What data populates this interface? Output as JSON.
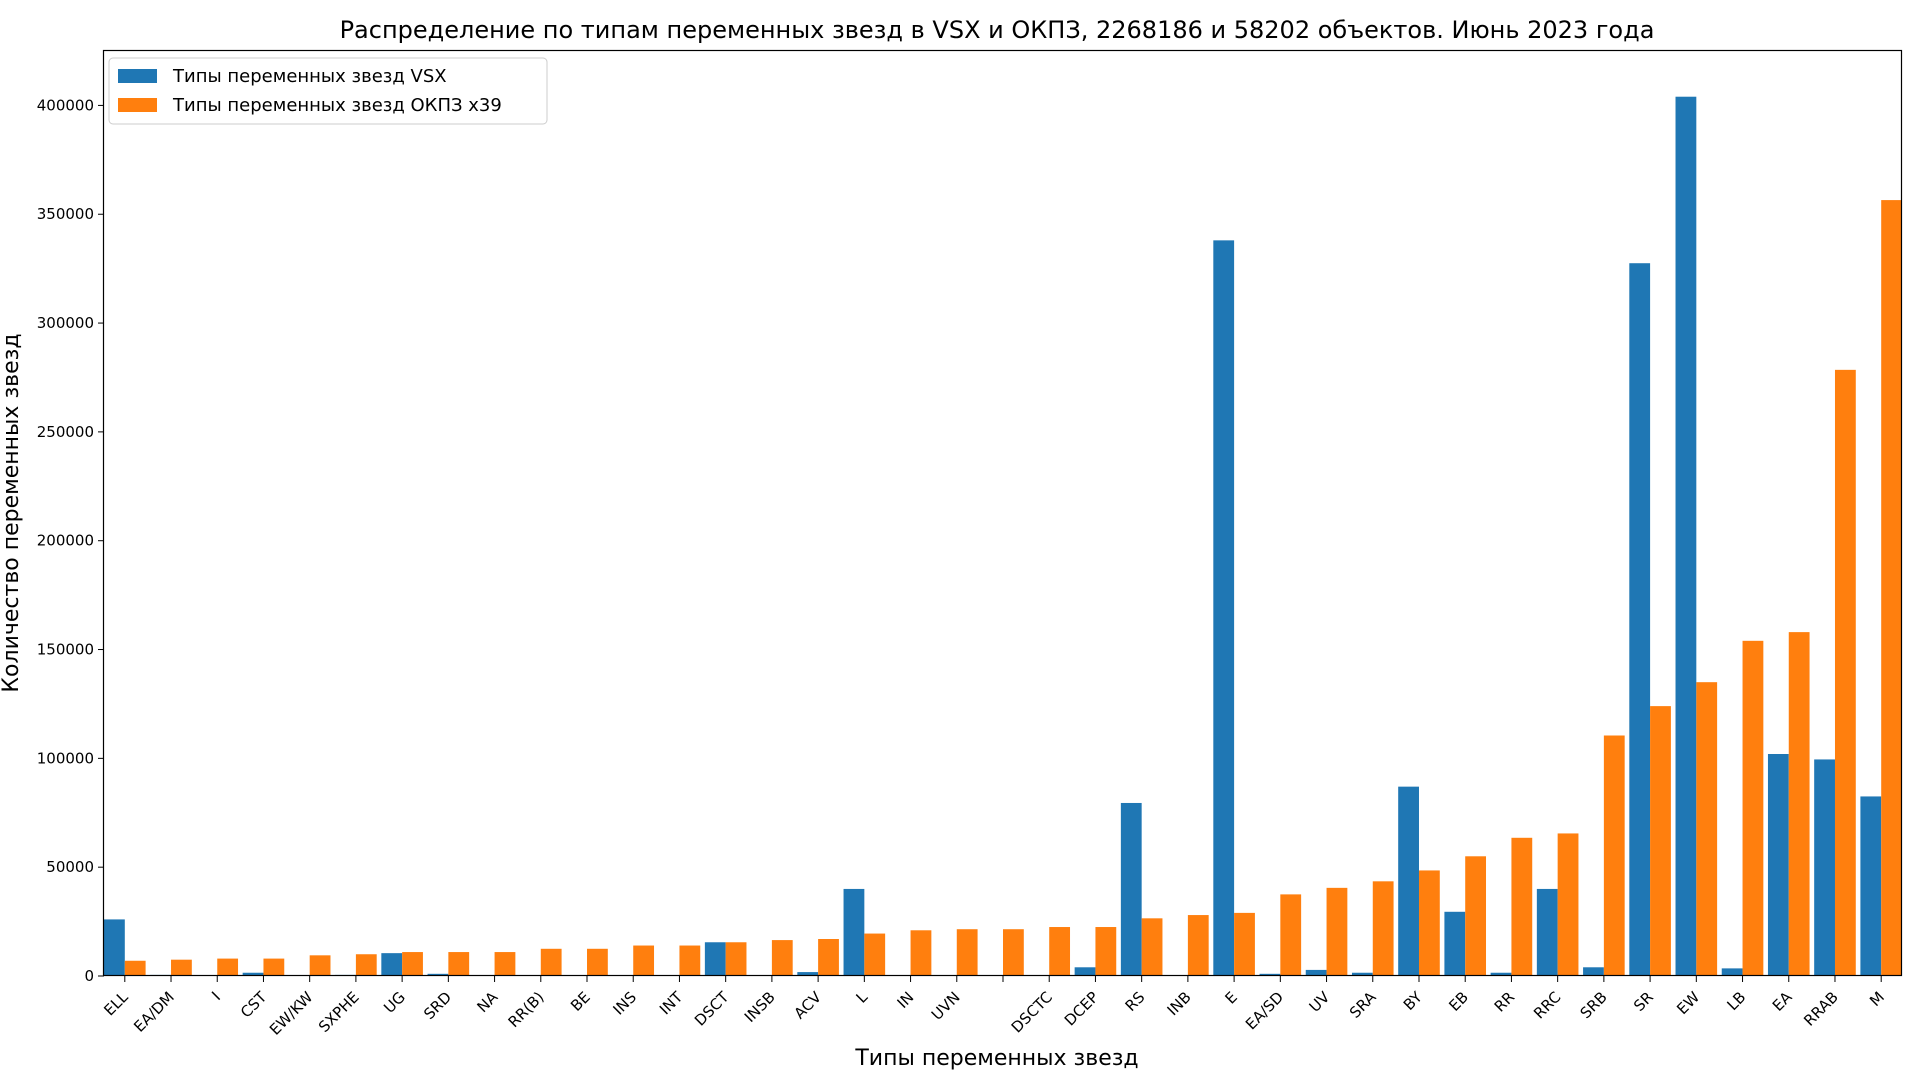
{
  "chart_data": {
    "type": "bar",
    "title": "Распределение по типам переменных звезд в VSX и ОКПЗ, 2268186 и 58202 объектов. Июнь 2023 года",
    "xlabel": "Типы переменных звезд",
    "ylabel": "Количество переменных звезд",
    "ylim": [
      0,
      425000
    ],
    "yticks": [
      0,
      50000,
      100000,
      150000,
      200000,
      250000,
      300000,
      350000,
      400000
    ],
    "ytick_labels": [
      "0",
      "50000",
      "100000",
      "150000",
      "200000",
      "250000",
      "300000",
      "350000",
      "400000"
    ],
    "grid": false,
    "legend_position": "top-left",
    "categories": [
      "ELL",
      "EA/DM",
      "I",
      "CST",
      "EW/KW",
      "SXPHE",
      "UG",
      "SRD",
      "NA",
      "RR(B)",
      "BE",
      "INS",
      "INT",
      "DSCT",
      "INSB",
      "ACV",
      "L",
      "IN",
      "UVN",
      "",
      "DSCTC",
      "DCEP",
      "RS",
      "INB",
      "E",
      "EA/SD",
      "UV",
      "SRA",
      "BY",
      "EB",
      "RR",
      "RRC",
      "SRB",
      "SR",
      "EW",
      "LB",
      "EA",
      "RRAB",
      "M"
    ],
    "series": [
      {
        "name": "Типы переменных звезд VSX",
        "color": "#1f77b4",
        "values": [
          26000,
          500,
          300,
          1500,
          300,
          500,
          10500,
          1000,
          0,
          0,
          300,
          300,
          300,
          15500,
          300,
          1800,
          40000,
          300,
          300,
          0,
          300,
          4000,
          79500,
          300,
          338000,
          1000,
          2800,
          1500,
          87000,
          29500,
          1500,
          40000,
          4000,
          327500,
          404000,
          3500,
          102000,
          99500,
          82500
        ]
      },
      {
        "name": "Типы переменных звезд ОКПЗ x39",
        "color": "#ff7f0e",
        "values": [
          7000,
          7500,
          8000,
          8000,
          9500,
          10000,
          11000,
          11000,
          11000,
          12500,
          12500,
          14000,
          14000,
          15500,
          16500,
          17000,
          19500,
          21000,
          21500,
          21500,
          22500,
          22500,
          26500,
          28000,
          29000,
          37500,
          40500,
          43500,
          48500,
          55000,
          63500,
          65500,
          110500,
          124000,
          135000,
          154000,
          158000,
          278500,
          356500
        ]
      }
    ]
  }
}
